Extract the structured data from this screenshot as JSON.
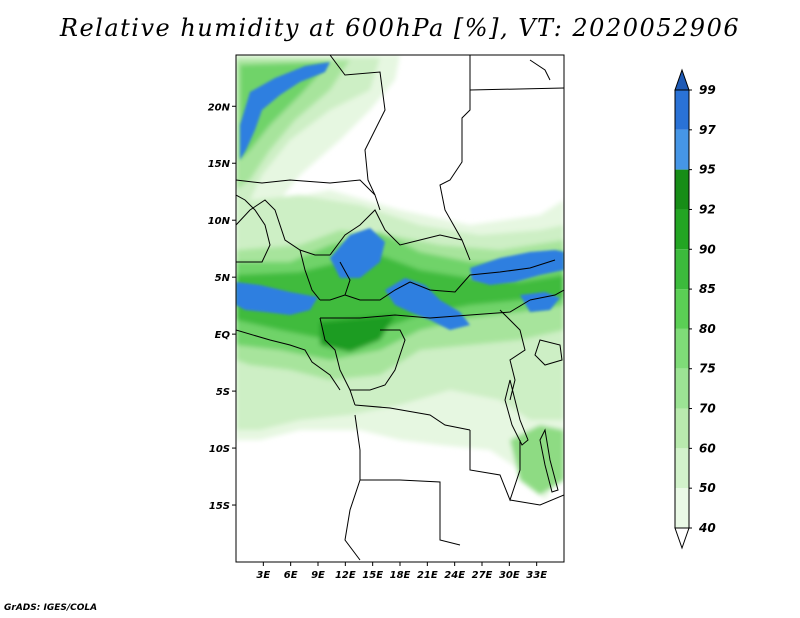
{
  "title": "Relative humidity at 600hPa [%], VT: 2020052906",
  "credit": "GrADS: IGES/COLA",
  "map": {
    "lon_range": [
      0,
      36
    ],
    "lat_range": [
      -20,
      24.5
    ],
    "lat_ticks": [
      {
        "value": 20,
        "label": "20N"
      },
      {
        "value": 15,
        "label": "15N"
      },
      {
        "value": 10,
        "label": "10N"
      },
      {
        "value": 5,
        "label": "5N"
      },
      {
        "value": 0,
        "label": "EQ"
      },
      {
        "value": -5,
        "label": "5S"
      },
      {
        "value": -10,
        "label": "10S"
      },
      {
        "value": -15,
        "label": "15S"
      }
    ],
    "lon_ticks": [
      {
        "value": 3,
        "label": "3E"
      },
      {
        "value": 6,
        "label": "6E"
      },
      {
        "value": 9,
        "label": "9E"
      },
      {
        "value": 12,
        "label": "12E"
      },
      {
        "value": 15,
        "label": "15E"
      },
      {
        "value": 18,
        "label": "18E"
      },
      {
        "value": 21,
        "label": "21E"
      },
      {
        "value": 24,
        "label": "24E"
      },
      {
        "value": 27,
        "label": "27E"
      },
      {
        "value": 30,
        "label": "30E"
      },
      {
        "value": 33,
        "label": "33E"
      }
    ]
  },
  "colorbar": {
    "levels": [
      "40",
      "50",
      "60",
      "70",
      "75",
      "80",
      "85",
      "90",
      "92",
      "95",
      "97",
      "99"
    ],
    "colors": [
      "#ffffff",
      "#eaf9e6",
      "#d2f2cb",
      "#b9eaae",
      "#9ce394",
      "#7fdb78",
      "#5bcf55",
      "#3cbb3c",
      "#23a523",
      "#178d17",
      "#4696e6",
      "#2a72d6",
      "#1e5ab5"
    ]
  },
  "colors": {
    "very_light_green": "#e8f8e4",
    "light_green": "#c5edbd",
    "medium_green": "#8fdc85",
    "green": "#4cc04a",
    "dark_green": "#1f9a24",
    "blue": "#2f7fe0",
    "border": "#000000"
  }
}
